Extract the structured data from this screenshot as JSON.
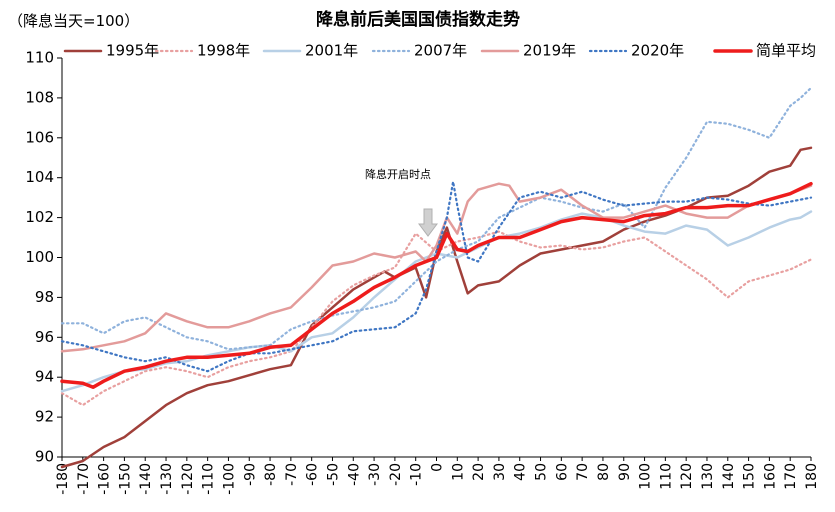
{
  "chart_data": {
    "type": "line",
    "title": "降息前后美国国债指数走势",
    "subtitle": "（降息当天=100）",
    "annotation": "降息开启时点",
    "xlim": [
      -180,
      180
    ],
    "ylim": [
      90,
      110
    ],
    "x_ticks": [
      -180,
      -170,
      -160,
      -150,
      -140,
      -130,
      -120,
      -110,
      -100,
      -90,
      -80,
      -70,
      -60,
      -50,
      -40,
      -30,
      -20,
      -10,
      0,
      10,
      20,
      30,
      40,
      50,
      60,
      70,
      80,
      90,
      100,
      110,
      120,
      130,
      140,
      150,
      160,
      170,
      180
    ],
    "y_ticks": [
      90,
      92,
      94,
      96,
      98,
      100,
      102,
      104,
      106,
      108,
      110
    ],
    "x_tick_labels": [
      "-180",
      "-170",
      "-160",
      "-150",
      "-140",
      "-130",
      "-120",
      "-110",
      "-100",
      "-90",
      "-80",
      "-70",
      "-60",
      "-50",
      "-40",
      "-30",
      "-20",
      "-10",
      "0",
      "10",
      "20",
      "30",
      "40",
      "50",
      "60",
      "70",
      "80",
      "90",
      "100",
      "110",
      "120",
      "130",
      "140",
      "150",
      "160",
      "170",
      "180"
    ],
    "y_tick_labels": [
      "90",
      "92",
      "94",
      "96",
      "98",
      "100",
      "102",
      "104",
      "106",
      "108",
      "110"
    ],
    "legend_position": "top",
    "series": [
      {
        "name": "1995年",
        "color": "#a0403a",
        "dash": "solid",
        "width": 2.5,
        "x": [
          -180,
          -170,
          -160,
          -150,
          -140,
          -130,
          -120,
          -110,
          -100,
          -90,
          -80,
          -70,
          -60,
          -50,
          -40,
          -30,
          -25,
          -20,
          -10,
          -5,
          0,
          5,
          10,
          15,
          20,
          30,
          40,
          50,
          60,
          70,
          80,
          90,
          100,
          110,
          120,
          130,
          140,
          150,
          160,
          170,
          175,
          180
        ],
        "y": [
          89.5,
          89.8,
          90.5,
          91.0,
          91.8,
          92.6,
          93.2,
          93.6,
          93.8,
          94.1,
          94.4,
          94.6,
          96.6,
          97.5,
          98.4,
          99.0,
          99.3,
          99.0,
          99.5,
          98.0,
          100.3,
          101.5,
          99.8,
          98.2,
          98.6,
          98.8,
          99.6,
          100.2,
          100.4,
          100.6,
          100.8,
          101.4,
          101.8,
          102.1,
          102.5,
          103.0,
          103.1,
          103.6,
          104.3,
          104.6,
          105.4,
          105.5
        ]
      },
      {
        "name": "1998年",
        "color": "#e8a0a0",
        "dash": "dot",
        "width": 2.2,
        "x": [
          -180,
          -170,
          -160,
          -150,
          -140,
          -130,
          -120,
          -110,
          -100,
          -90,
          -80,
          -70,
          -60,
          -50,
          -40,
          -30,
          -20,
          -10,
          0,
          10,
          20,
          30,
          40,
          50,
          60,
          70,
          80,
          90,
          100,
          110,
          120,
          130,
          140,
          150,
          160,
          170,
          180
        ],
        "y": [
          93.2,
          92.6,
          93.3,
          93.8,
          94.3,
          94.5,
          94.3,
          94.0,
          94.5,
          94.8,
          95.0,
          95.3,
          96.5,
          97.8,
          98.6,
          99.1,
          99.5,
          101.2,
          100.3,
          100.8,
          101.0,
          101.3,
          100.8,
          100.5,
          100.6,
          100.4,
          100.5,
          100.8,
          101.0,
          100.3,
          99.6,
          98.9,
          98.0,
          98.8,
          99.1,
          99.4,
          99.9
        ]
      },
      {
        "name": "2001年",
        "color": "#b8d0e6",
        "dash": "solid",
        "width": 2.5,
        "x": [
          -180,
          -170,
          -160,
          -150,
          -140,
          -130,
          -120,
          -110,
          -100,
          -90,
          -80,
          -70,
          -60,
          -50,
          -40,
          -30,
          -20,
          -10,
          0,
          10,
          20,
          30,
          40,
          50,
          60,
          70,
          80,
          90,
          100,
          110,
          120,
          130,
          140,
          150,
          160,
          170,
          175,
          180
        ],
        "y": [
          93.3,
          93.6,
          94.0,
          94.3,
          94.4,
          94.7,
          94.8,
          95.1,
          95.3,
          95.5,
          95.6,
          95.3,
          96.0,
          96.2,
          97.0,
          98.0,
          98.9,
          99.8,
          100.2,
          100.0,
          100.5,
          101.0,
          101.2,
          101.5,
          101.9,
          102.2,
          102.0,
          101.6,
          101.3,
          101.2,
          101.6,
          101.4,
          100.6,
          101.0,
          101.5,
          101.9,
          102.0,
          102.3
        ]
      },
      {
        "name": "2007年",
        "color": "#8fb2dc",
        "dash": "dot",
        "width": 2.2,
        "x": [
          -180,
          -170,
          -160,
          -150,
          -140,
          -130,
          -120,
          -110,
          -100,
          -90,
          -80,
          -70,
          -60,
          -50,
          -40,
          -30,
          -20,
          -10,
          0,
          10,
          20,
          30,
          40,
          50,
          60,
          70,
          80,
          90,
          100,
          110,
          120,
          130,
          140,
          150,
          160,
          170,
          175,
          180
        ],
        "y": [
          96.7,
          96.7,
          96.2,
          96.8,
          97.0,
          96.5,
          96.0,
          95.8,
          95.4,
          95.5,
          95.6,
          96.4,
          96.8,
          97.1,
          97.3,
          97.5,
          97.8,
          98.8,
          99.8,
          100.4,
          100.8,
          102.0,
          102.5,
          103.0,
          102.8,
          102.5,
          102.3,
          102.7,
          101.5,
          103.5,
          105.0,
          106.8,
          106.7,
          106.4,
          106.0,
          107.6,
          108.0,
          108.5
        ]
      },
      {
        "name": "2019年",
        "color": "#e39b9a",
        "dash": "solid",
        "width": 2.5,
        "x": [
          -180,
          -170,
          -160,
          -150,
          -140,
          -130,
          -120,
          -110,
          -100,
          -90,
          -80,
          -70,
          -60,
          -50,
          -40,
          -30,
          -20,
          -10,
          -5,
          0,
          5,
          10,
          15,
          20,
          30,
          35,
          40,
          50,
          60,
          70,
          80,
          90,
          100,
          110,
          120,
          130,
          140,
          150,
          160,
          170,
          180
        ],
        "y": [
          95.3,
          95.4,
          95.6,
          95.8,
          96.2,
          97.2,
          96.8,
          96.5,
          96.5,
          96.8,
          97.2,
          97.5,
          98.5,
          99.6,
          99.8,
          100.2,
          100.0,
          100.3,
          99.8,
          100.6,
          102.0,
          101.2,
          102.8,
          103.4,
          103.7,
          103.6,
          102.8,
          103.0,
          103.4,
          102.6,
          102.0,
          102.0,
          102.3,
          102.6,
          102.2,
          102.0,
          102.0,
          102.6,
          102.9,
          103.2,
          103.6
        ]
      },
      {
        "name": "2020年",
        "color": "#3f76c3",
        "dash": "dot",
        "width": 2.2,
        "x": [
          -180,
          -170,
          -160,
          -150,
          -140,
          -130,
          -120,
          -110,
          -100,
          -90,
          -80,
          -70,
          -60,
          -50,
          -40,
          -30,
          -20,
          -10,
          -5,
          0,
          5,
          8,
          10,
          15,
          20,
          30,
          40,
          50,
          60,
          70,
          80,
          90,
          100,
          110,
          120,
          130,
          140,
          150,
          160,
          170,
          180
        ],
        "y": [
          95.8,
          95.6,
          95.3,
          95.0,
          94.8,
          95.0,
          94.6,
          94.3,
          94.8,
          95.2,
          95.2,
          95.4,
          95.6,
          95.8,
          96.3,
          96.4,
          96.5,
          97.2,
          98.4,
          100.3,
          102.0,
          103.8,
          102.6,
          100.0,
          99.8,
          101.5,
          103.0,
          103.3,
          103.0,
          103.3,
          102.9,
          102.6,
          102.7,
          102.8,
          102.8,
          103.0,
          102.9,
          102.7,
          102.6,
          102.8,
          103.0
        ]
      },
      {
        "name": "简单平均",
        "color": "#ee1c1c",
        "dash": "solid",
        "width": 3.5,
        "x": [
          -180,
          -170,
          -165,
          -160,
          -150,
          -140,
          -130,
          -120,
          -110,
          -100,
          -90,
          -80,
          -70,
          -60,
          -50,
          -40,
          -30,
          -20,
          -10,
          -5,
          0,
          5,
          10,
          15,
          20,
          30,
          40,
          50,
          60,
          70,
          80,
          90,
          100,
          110,
          120,
          130,
          140,
          150,
          160,
          170,
          180
        ],
        "y": [
          93.8,
          93.7,
          93.5,
          93.8,
          94.3,
          94.5,
          94.8,
          95.0,
          95.0,
          95.1,
          95.2,
          95.5,
          95.6,
          96.4,
          97.2,
          97.8,
          98.5,
          99.0,
          99.6,
          99.8,
          100.0,
          101.2,
          100.4,
          100.3,
          100.6,
          101.0,
          101.0,
          101.4,
          101.8,
          102.0,
          101.9,
          101.8,
          102.1,
          102.2,
          102.5,
          102.5,
          102.6,
          102.6,
          102.9,
          103.2,
          103.7
        ]
      }
    ]
  }
}
